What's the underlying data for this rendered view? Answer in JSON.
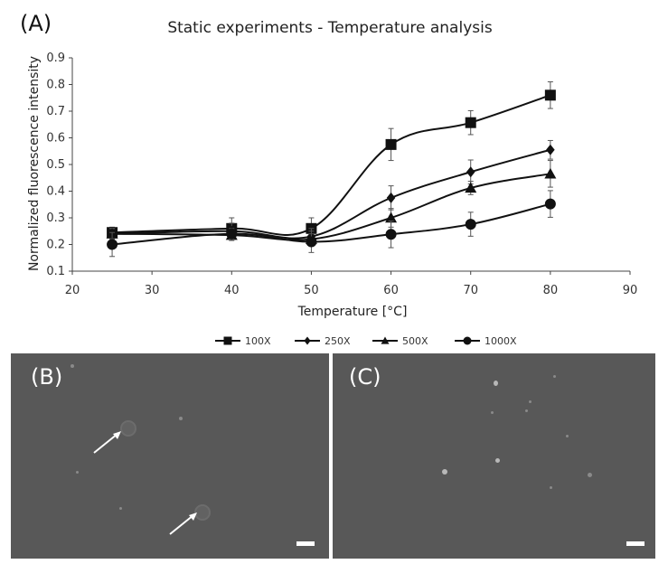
{
  "panels": {
    "a_label": "(A)",
    "b_label": "(B)",
    "c_label": "(C)"
  },
  "chart_data": {
    "type": "line",
    "title": "Static experiments - Temperature  analysis",
    "xlabel": "Temperature [°C]",
    "ylabel": "Normalized fluorescence intensity",
    "xlim": [
      20,
      90
    ],
    "ylim": [
      0.1,
      0.9
    ],
    "xticks": [
      20,
      30,
      40,
      50,
      60,
      70,
      80,
      90
    ],
    "yticks": [
      0.1,
      0.2,
      0.3,
      0.4,
      0.5,
      0.6,
      0.7,
      0.8,
      0.9
    ],
    "grid": false,
    "legend_position": "bottom",
    "x": [
      25,
      40,
      50,
      60,
      70,
      80
    ],
    "series": [
      {
        "name": "100X",
        "marker": "square",
        "values": [
          0.245,
          0.26,
          0.26,
          0.575,
          0.657,
          0.76
        ],
        "errors": [
          0.02,
          0.04,
          0.04,
          0.06,
          0.045,
          0.05
        ]
      },
      {
        "name": "250X",
        "marker": "diamond",
        "values": [
          0.24,
          0.25,
          0.23,
          0.375,
          0.472,
          0.555
        ],
        "errors": [
          0.02,
          0.03,
          0.03,
          0.045,
          0.045,
          0.035
        ]
      },
      {
        "name": "500X",
        "marker": "triangle",
        "values": [
          0.24,
          0.235,
          0.22,
          0.3,
          0.412,
          0.465
        ],
        "errors": [
          0.02,
          0.02,
          0.02,
          0.035,
          0.025,
          0.05
        ]
      },
      {
        "name": "1000X",
        "marker": "circle",
        "values": [
          0.2,
          0.24,
          0.21,
          0.238,
          0.276,
          0.352
        ],
        "errors": [
          0.045,
          0.02,
          0.04,
          0.05,
          0.045,
          0.05
        ]
      }
    ]
  }
}
